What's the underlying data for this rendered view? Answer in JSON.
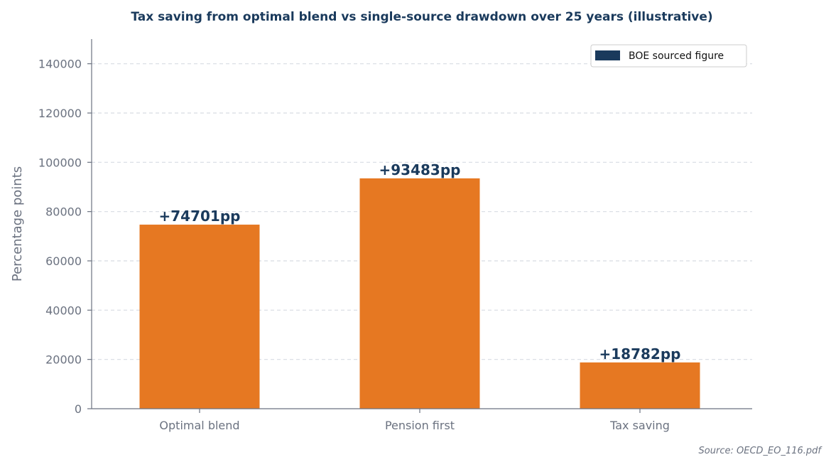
{
  "chart_data": {
    "type": "bar",
    "title": "Tax saving from optimal blend vs single-source drawdown over 25 years (illustrative)",
    "xlabel": "",
    "ylabel": "Percentage points",
    "categories": [
      "Optimal blend",
      "Pension first",
      "Tax saving"
    ],
    "values": [
      74701,
      93483,
      18782
    ],
    "data_labels": [
      "+74701pp",
      "+93483pp",
      "+18782pp"
    ],
    "ylim": [
      0,
      150000
    ],
    "yticks": [
      0,
      20000,
      40000,
      60000,
      80000,
      100000,
      120000,
      140000
    ],
    "ytick_labels": [
      "0",
      "20000",
      "40000",
      "60000",
      "80000",
      "100000",
      "120000",
      "140000"
    ],
    "grid": "y-dashed",
    "legend": {
      "placement": "top-right",
      "entries": [
        {
          "label": "BOE sourced figure",
          "color": "#1a3a5c"
        }
      ]
    },
    "bar_color": "#e67822",
    "source": "Source: OECD_EO_116.pdf"
  }
}
